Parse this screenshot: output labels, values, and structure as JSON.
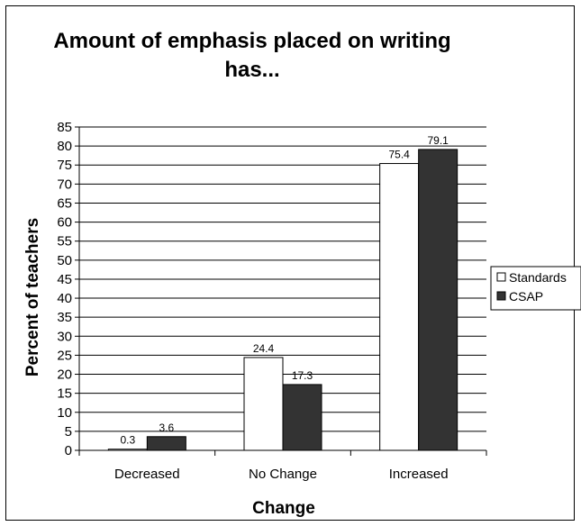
{
  "chart_data": {
    "type": "bar",
    "title": "Amount of emphasis placed on writing has...",
    "xlabel": "Change",
    "ylabel": "Percent of teachers",
    "categories": [
      "Decreased",
      "No Change",
      "Increased"
    ],
    "series": [
      {
        "name": "Standards",
        "values": [
          0.3,
          24.4,
          75.4
        ],
        "color": "#ffffff"
      },
      {
        "name": "CSAP",
        "values": [
          3.6,
          17.3,
          79.1
        ],
        "color": "#333333"
      }
    ],
    "data_labels": [
      [
        "0.3",
        "24.4",
        "75.4"
      ],
      [
        "3.6",
        "17.3",
        "79.1"
      ]
    ],
    "ylim": [
      0,
      85
    ],
    "yticks": [
      0,
      5,
      10,
      15,
      20,
      25,
      30,
      35,
      40,
      45,
      50,
      55,
      60,
      65,
      70,
      75,
      80,
      85
    ],
    "grid": true,
    "legend": "right"
  }
}
